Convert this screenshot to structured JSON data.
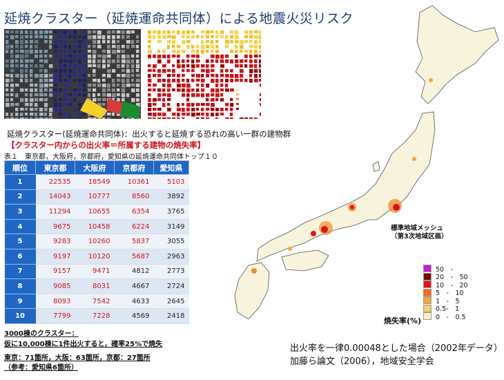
{
  "title": "延焼クラスター（延焼運命共同体）による地震火災リスク",
  "definition": "延焼クラスター(延焼運命共同体)：出火すると延焼する恐れの高い一群の建物群",
  "definition_red": "【クラスター内からの出火率＝所属する建物の焼失率】",
  "table_caption": "表１　東京都，大阪府，京都府，愛知県の延焼運命共同体トップ１０",
  "table": {
    "headers": [
      "順位",
      "東京都",
      "大阪府",
      "京都府",
      "愛知県"
    ],
    "rows": [
      {
        "rank": "1",
        "tokyo": "22535",
        "osaka": "18549",
        "kyoto": "10361",
        "aichi": "5103"
      },
      {
        "rank": "2",
        "tokyo": "14043",
        "osaka": "10777",
        "kyoto": "8560",
        "aichi": "3892"
      },
      {
        "rank": "3",
        "tokyo": "11294",
        "osaka": "10655",
        "kyoto": "6354",
        "aichi": "3765"
      },
      {
        "rank": "4",
        "tokyo": "9675",
        "osaka": "10458",
        "kyoto": "6224",
        "aichi": "3149"
      },
      {
        "rank": "5",
        "tokyo": "9283",
        "osaka": "10260",
        "kyoto": "5837",
        "aichi": "3055"
      },
      {
        "rank": "6",
        "tokyo": "9197",
        "osaka": "10120",
        "kyoto": "5687",
        "aichi": "2963"
      },
      {
        "rank": "7",
        "tokyo": "9157",
        "osaka": "9471",
        "kyoto": "4812",
        "aichi": "2773"
      },
      {
        "rank": "8",
        "tokyo": "9085",
        "osaka": "8031",
        "kyoto": "4667",
        "aichi": "2724"
      },
      {
        "rank": "9",
        "tokyo": "8093",
        "osaka": "7542",
        "kyoto": "4633",
        "aichi": "2645"
      },
      {
        "rank": "10",
        "tokyo": "7799",
        "osaka": "7228",
        "kyoto": "4569",
        "aichi": "2418"
      }
    ]
  },
  "notes": {
    "cluster_3000": "3000棟のクラスター：",
    "probability": "仮に10,000棟に1件出火すると，確率25%で焼失",
    "counts": "東京：71箇所，大阪：63箇所，京都：27箇所",
    "aichi_ref": "（参考：愛知県6箇所）"
  },
  "map": {
    "mesh_label_1": "標準地域メッシュ",
    "mesh_label_2": "（第3次地域区画）",
    "legend_title": "焼失率(%)",
    "legend": [
      {
        "label": "50　-",
        "color": "#c21fc9"
      },
      {
        "label": "20　-　50",
        "color": "#7a0a0a"
      },
      {
        "label": "10　-　20",
        "color": "#e01414"
      },
      {
        "label": "5　-　10",
        "color": "#f0701c"
      },
      {
        "label": "1　-　5",
        "color": "#f5a43a"
      },
      {
        "label": "0.5-　1",
        "color": "#f8cf6a"
      },
      {
        "label": "0　-　0.5",
        "color": "#fbf2c4"
      }
    ]
  },
  "source": {
    "line1": "出火率を一律0.00048とした場合（2002年データ）",
    "line2": "加藤ら論文（2006），地域安全学会"
  },
  "colors": {
    "header_blue": "#1f67c2",
    "red_text": "#d0121b",
    "title_blue": "#1e3a6e"
  }
}
